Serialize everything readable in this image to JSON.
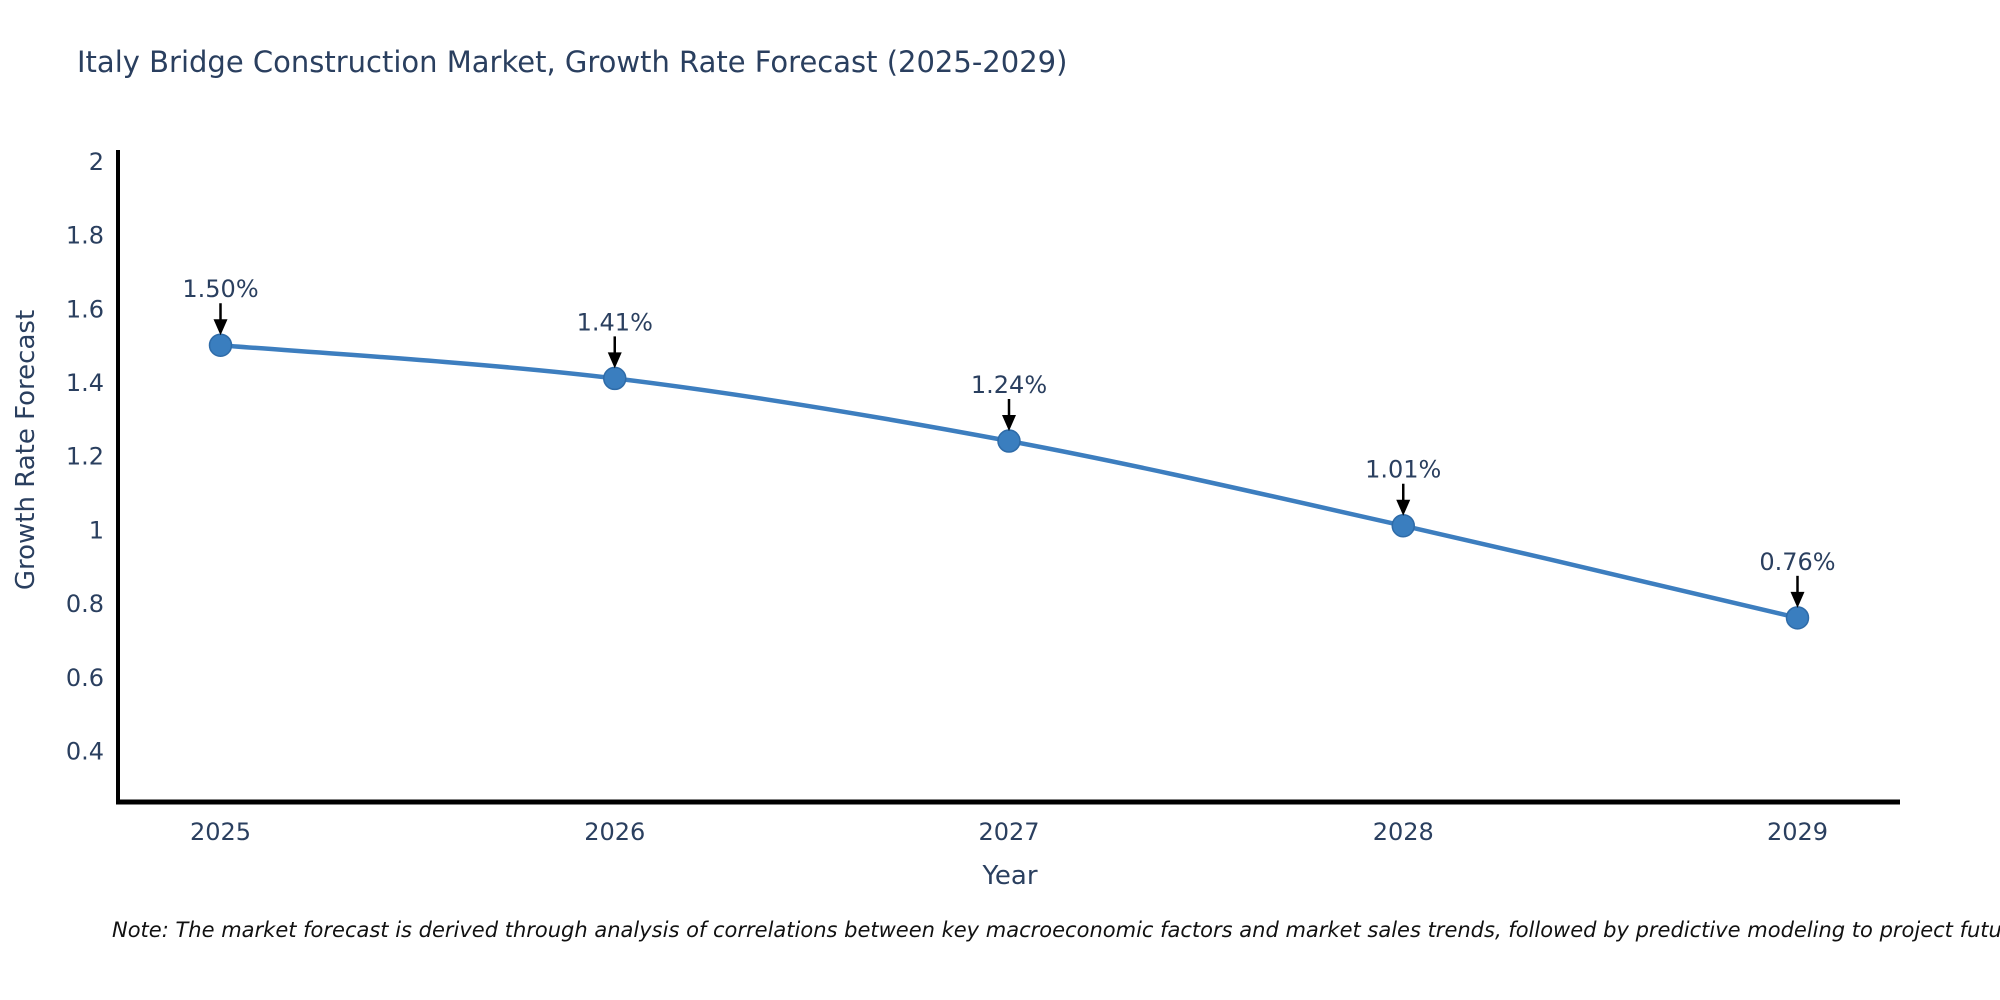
{
  "title": "Italy Bridge Construction Market, Growth Rate Forecast (2025-2029)",
  "note": "Note: The market forecast is derived through analysis of correlations between key macroeconomic factors and market sales trends, followed by predictive modeling to project future sales",
  "colors": {
    "background": "#ffffff",
    "line": "#3d7ebf",
    "marker": "#3a7ebf",
    "marker_edge": "#2e6ba8",
    "axis": "#000000",
    "text": "#2a3f5f",
    "arrow": "#000000",
    "note_text": "#111111"
  },
  "chart_data": {
    "type": "line",
    "title": "Italy Bridge Construction Market, Growth Rate Forecast (2025-2029)",
    "xlabel": "Year",
    "ylabel": "Growth Rate Forecast",
    "x": [
      2025,
      2026,
      2027,
      2028,
      2029
    ],
    "series": [
      {
        "name": "Growth Rate Forecast",
        "values": [
          1.5,
          1.41,
          1.24,
          1.01,
          0.76
        ]
      }
    ],
    "data_labels": [
      "1.50%",
      "1.41%",
      "1.24%",
      "1.01%",
      "0.76%"
    ],
    "x_tick_labels": [
      "2025",
      "2026",
      "2027",
      "2028",
      "2029"
    ],
    "y_ticks": [
      2,
      1.8,
      1.6,
      1.4,
      1.2,
      1,
      0.8,
      0.6,
      0.4
    ],
    "y_tick_labels": [
      "2",
      "1.8",
      "1.6",
      "1.4",
      "1.2",
      "1",
      "0.8",
      "0.6",
      "0.4"
    ],
    "xlim": [
      2024.74,
      2029.26
    ],
    "ylim": [
      0.26,
      2.03
    ],
    "grid": false,
    "legend": "none",
    "line_shape": "spline",
    "marker": "circle",
    "annotation_arrows": true
  }
}
